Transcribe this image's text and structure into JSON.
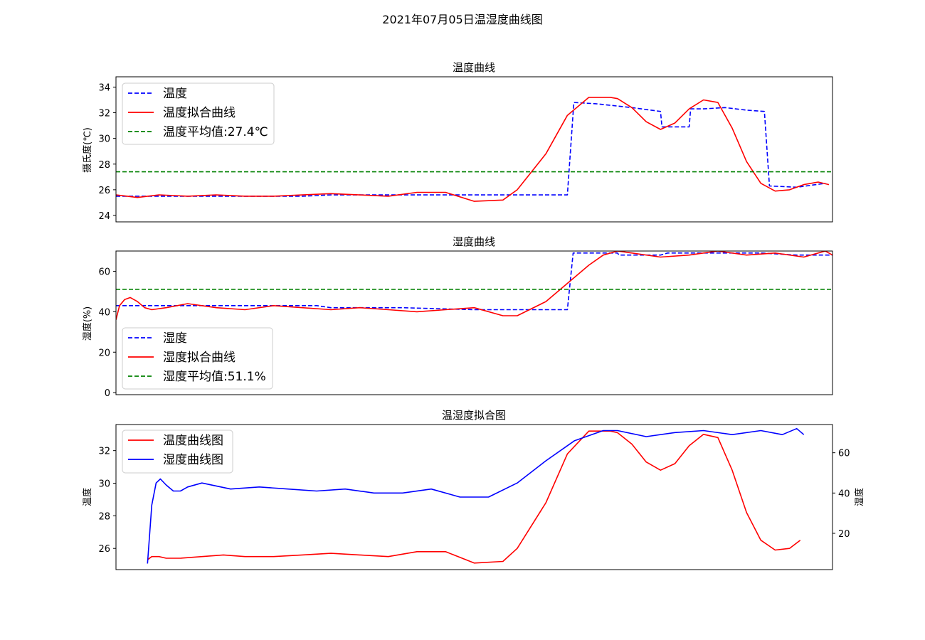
{
  "figure": {
    "title": "2021年07月05日温湿度曲线图"
  },
  "chart_data": [
    {
      "type": "line",
      "title": "温度曲线",
      "xlabel": "",
      "ylabel": "摄氏度(℃)",
      "ylim": [
        23.5,
        34.8
      ],
      "yticks": [
        24,
        26,
        28,
        30,
        32,
        34
      ],
      "xlim": [
        0,
        1
      ],
      "grid": false,
      "legend_position": "upper-left",
      "series": [
        {
          "name": "温度",
          "style": "dashed",
          "color": "#0000ff",
          "x": [
            0,
            0.04,
            0.1,
            0.16,
            0.22,
            0.26,
            0.3,
            0.36,
            0.42,
            0.5,
            0.55,
            0.6,
            0.63,
            0.639,
            0.67,
            0.72,
            0.76,
            0.762,
            0.8,
            0.802,
            0.82,
            0.85,
            0.88,
            0.905,
            0.912,
            0.95,
            0.99
          ],
          "y": [
            25.5,
            25.5,
            25.5,
            25.5,
            25.5,
            25.5,
            25.6,
            25.6,
            25.6,
            25.6,
            25.6,
            25.6,
            25.6,
            32.8,
            32.7,
            32.4,
            32.1,
            30.9,
            30.9,
            32.3,
            32.3,
            32.4,
            32.2,
            32.1,
            26.3,
            26.2,
            26.5
          ]
        },
        {
          "name": "温度拟合曲线",
          "style": "solid",
          "color": "#ff0000",
          "x": [
            0,
            0.03,
            0.06,
            0.1,
            0.14,
            0.18,
            0.22,
            0.26,
            0.3,
            0.34,
            0.38,
            0.42,
            0.46,
            0.5,
            0.54,
            0.56,
            0.6,
            0.63,
            0.66,
            0.69,
            0.7,
            0.72,
            0.74,
            0.76,
            0.78,
            0.8,
            0.82,
            0.84,
            0.86,
            0.88,
            0.9,
            0.92,
            0.94,
            0.96,
            0.98,
            0.995
          ],
          "y": [
            25.6,
            25.4,
            25.6,
            25.5,
            25.6,
            25.5,
            25.5,
            25.6,
            25.7,
            25.6,
            25.5,
            25.8,
            25.8,
            25.1,
            25.2,
            26.0,
            28.8,
            31.8,
            33.2,
            33.2,
            33.1,
            32.4,
            31.3,
            30.7,
            31.2,
            32.3,
            33.0,
            32.8,
            30.8,
            28.2,
            26.5,
            25.9,
            26.0,
            26.4,
            26.6,
            26.4
          ]
        },
        {
          "name": "温度平均值:27.4℃",
          "style": "dashed",
          "color": "#008000",
          "x": [
            0,
            1
          ],
          "y": [
            27.4,
            27.4
          ]
        }
      ]
    },
    {
      "type": "line",
      "title": "湿度曲线",
      "xlabel": "",
      "ylabel": "湿度(%)",
      "ylim": [
        -1,
        70
      ],
      "yticks": [
        0,
        20,
        40,
        60
      ],
      "xlim": [
        0,
        1
      ],
      "grid": false,
      "legend_position": "lower-left",
      "series": [
        {
          "name": "湿度",
          "style": "dashed",
          "color": "#0000ff",
          "x": [
            0,
            0.1,
            0.28,
            0.3,
            0.4,
            0.5,
            0.55,
            0.6,
            0.63,
            0.638,
            0.7,
            0.702,
            0.76,
            0.77,
            0.9,
            0.95,
            0.97,
            1.0
          ],
          "y": [
            43,
            43,
            43,
            42,
            42,
            41,
            41,
            41,
            41,
            69,
            69,
            68,
            68,
            69,
            69,
            68,
            68,
            68
          ]
        },
        {
          "name": "湿度拟合曲线",
          "style": "solid",
          "color": "#ff0000",
          "x": [
            0,
            0.005,
            0.012,
            0.02,
            0.03,
            0.04,
            0.05,
            0.07,
            0.1,
            0.14,
            0.18,
            0.22,
            0.26,
            0.3,
            0.34,
            0.38,
            0.42,
            0.46,
            0.5,
            0.54,
            0.56,
            0.6,
            0.63,
            0.66,
            0.68,
            0.7,
            0.72,
            0.76,
            0.8,
            0.84,
            0.88,
            0.92,
            0.96,
            0.99,
            1.0
          ],
          "y": [
            36,
            43,
            46,
            47,
            45,
            42,
            41,
            42,
            44,
            42,
            41,
            43,
            42,
            41,
            42,
            41,
            40,
            41,
            42,
            38,
            38,
            45,
            54,
            63,
            68,
            70,
            69,
            67,
            68,
            70,
            68,
            69,
            67,
            70,
            68
          ]
        },
        {
          "name": "湿度平均值:51.1%",
          "style": "dashed",
          "color": "#008000",
          "x": [
            0,
            1
          ],
          "y": [
            51.1,
            51.1
          ]
        }
      ]
    },
    {
      "type": "line",
      "title": "温湿度拟合图",
      "xlabel": "",
      "ylabel": "温度",
      "ylabel_right": "湿度",
      "ylim": [
        24.7,
        33.6
      ],
      "yticks": [
        26,
        28,
        30,
        32
      ],
      "ylim_right": [
        2,
        74
      ],
      "yticks_right": [
        20,
        40,
        60
      ],
      "xlim": [
        0,
        1
      ],
      "grid": false,
      "legend_position": "upper-left",
      "series": [
        {
          "name": "温度曲线图",
          "axis": "left",
          "style": "solid",
          "color": "#ff0000",
          "x": [
            0.044,
            0.05,
            0.06,
            0.07,
            0.09,
            0.12,
            0.15,
            0.18,
            0.22,
            0.26,
            0.3,
            0.34,
            0.38,
            0.42,
            0.46,
            0.5,
            0.54,
            0.56,
            0.6,
            0.63,
            0.66,
            0.69,
            0.7,
            0.72,
            0.74,
            0.76,
            0.78,
            0.8,
            0.82,
            0.84,
            0.86,
            0.88,
            0.9,
            0.92,
            0.94,
            0.955
          ],
          "y": [
            25.3,
            25.5,
            25.5,
            25.4,
            25.4,
            25.5,
            25.6,
            25.5,
            25.5,
            25.6,
            25.7,
            25.6,
            25.5,
            25.8,
            25.8,
            25.1,
            25.2,
            26.0,
            28.8,
            31.8,
            33.2,
            33.2,
            33.1,
            32.4,
            31.3,
            30.8,
            31.2,
            32.3,
            33.0,
            32.8,
            30.8,
            28.2,
            26.5,
            25.9,
            26.0,
            26.5
          ]
        },
        {
          "name": "湿度曲线图",
          "axis": "right",
          "style": "solid",
          "color": "#0000ff",
          "x": [
            0.044,
            0.05,
            0.056,
            0.062,
            0.07,
            0.08,
            0.09,
            0.1,
            0.12,
            0.16,
            0.2,
            0.24,
            0.28,
            0.32,
            0.36,
            0.4,
            0.44,
            0.48,
            0.52,
            0.56,
            0.6,
            0.64,
            0.68,
            0.7,
            0.74,
            0.78,
            0.82,
            0.86,
            0.9,
            0.93,
            0.95,
            0.96
          ],
          "y": [
            5,
            34,
            45,
            47,
            44,
            41,
            41,
            43,
            45,
            42,
            43,
            42,
            41,
            42,
            40,
            40,
            42,
            38,
            38,
            45,
            56,
            66,
            71,
            71,
            68,
            70,
            71,
            69,
            71,
            69,
            72,
            69
          ]
        }
      ]
    }
  ]
}
